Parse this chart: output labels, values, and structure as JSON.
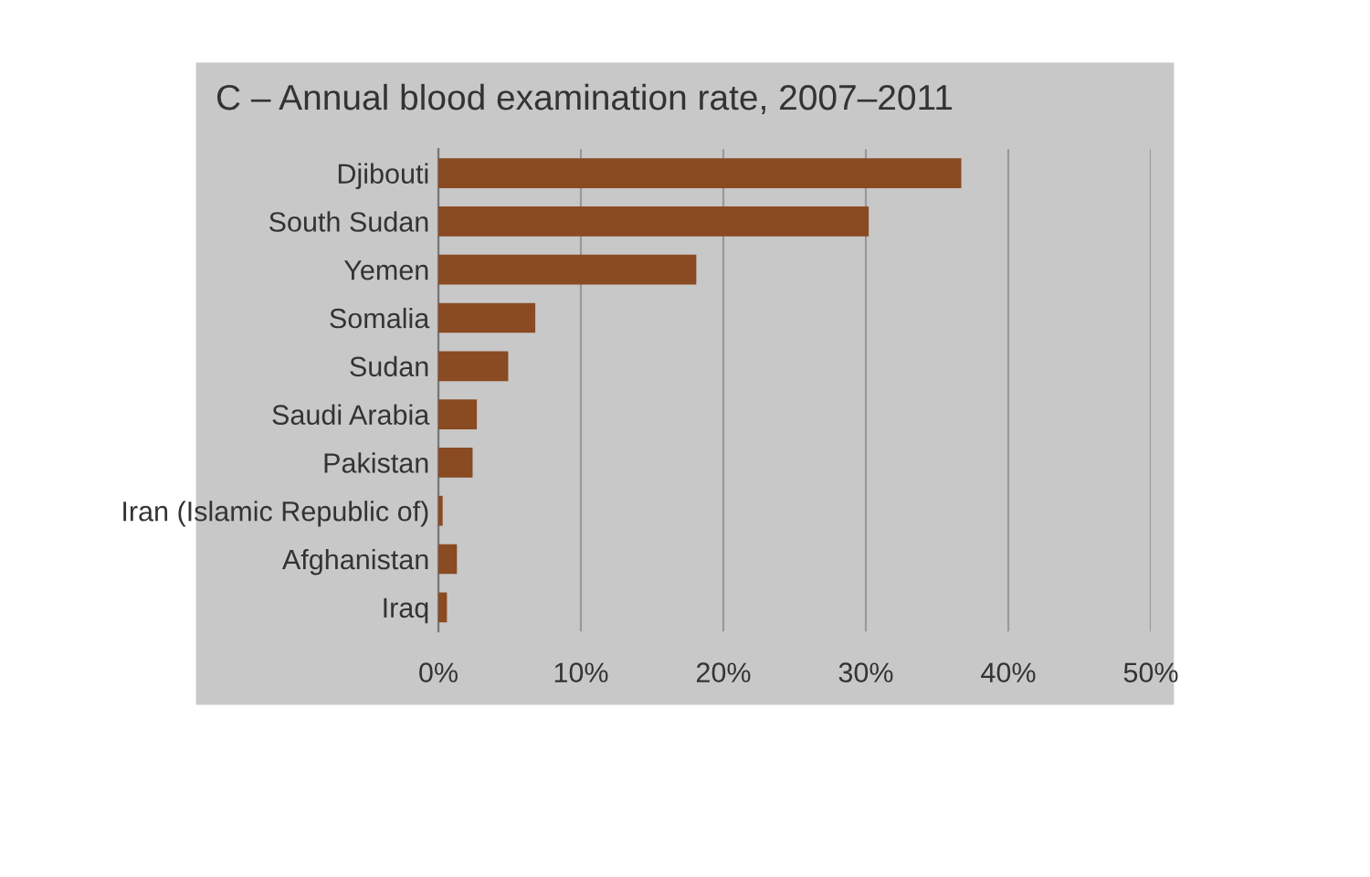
{
  "chart_data": {
    "type": "bar",
    "orientation": "horizontal",
    "title": "C – Annual blood examination rate, 2007–2011",
    "categories": [
      "Djibouti",
      "South Sudan",
      "Yemen",
      "Somalia",
      "Sudan",
      "Saudi Arabia",
      "Pakistan",
      "Iran (Islamic Republic of)",
      "Afghanistan",
      "Iraq"
    ],
    "values": [
      36.7,
      30.2,
      18.1,
      6.8,
      4.9,
      2.7,
      2.4,
      0.3,
      1.3,
      0.6
    ],
    "color": "#8a4a22",
    "xlim": [
      0,
      50
    ],
    "xticks": [
      {
        "value": 0,
        "label": "0%"
      },
      {
        "value": 10,
        "label": "10%"
      },
      {
        "value": 20,
        "label": "20%"
      },
      {
        "value": 30,
        "label": "30%"
      },
      {
        "value": 40,
        "label": "40%"
      },
      {
        "value": 50,
        "label": "50%"
      }
    ],
    "grid": "x",
    "legend": false
  }
}
